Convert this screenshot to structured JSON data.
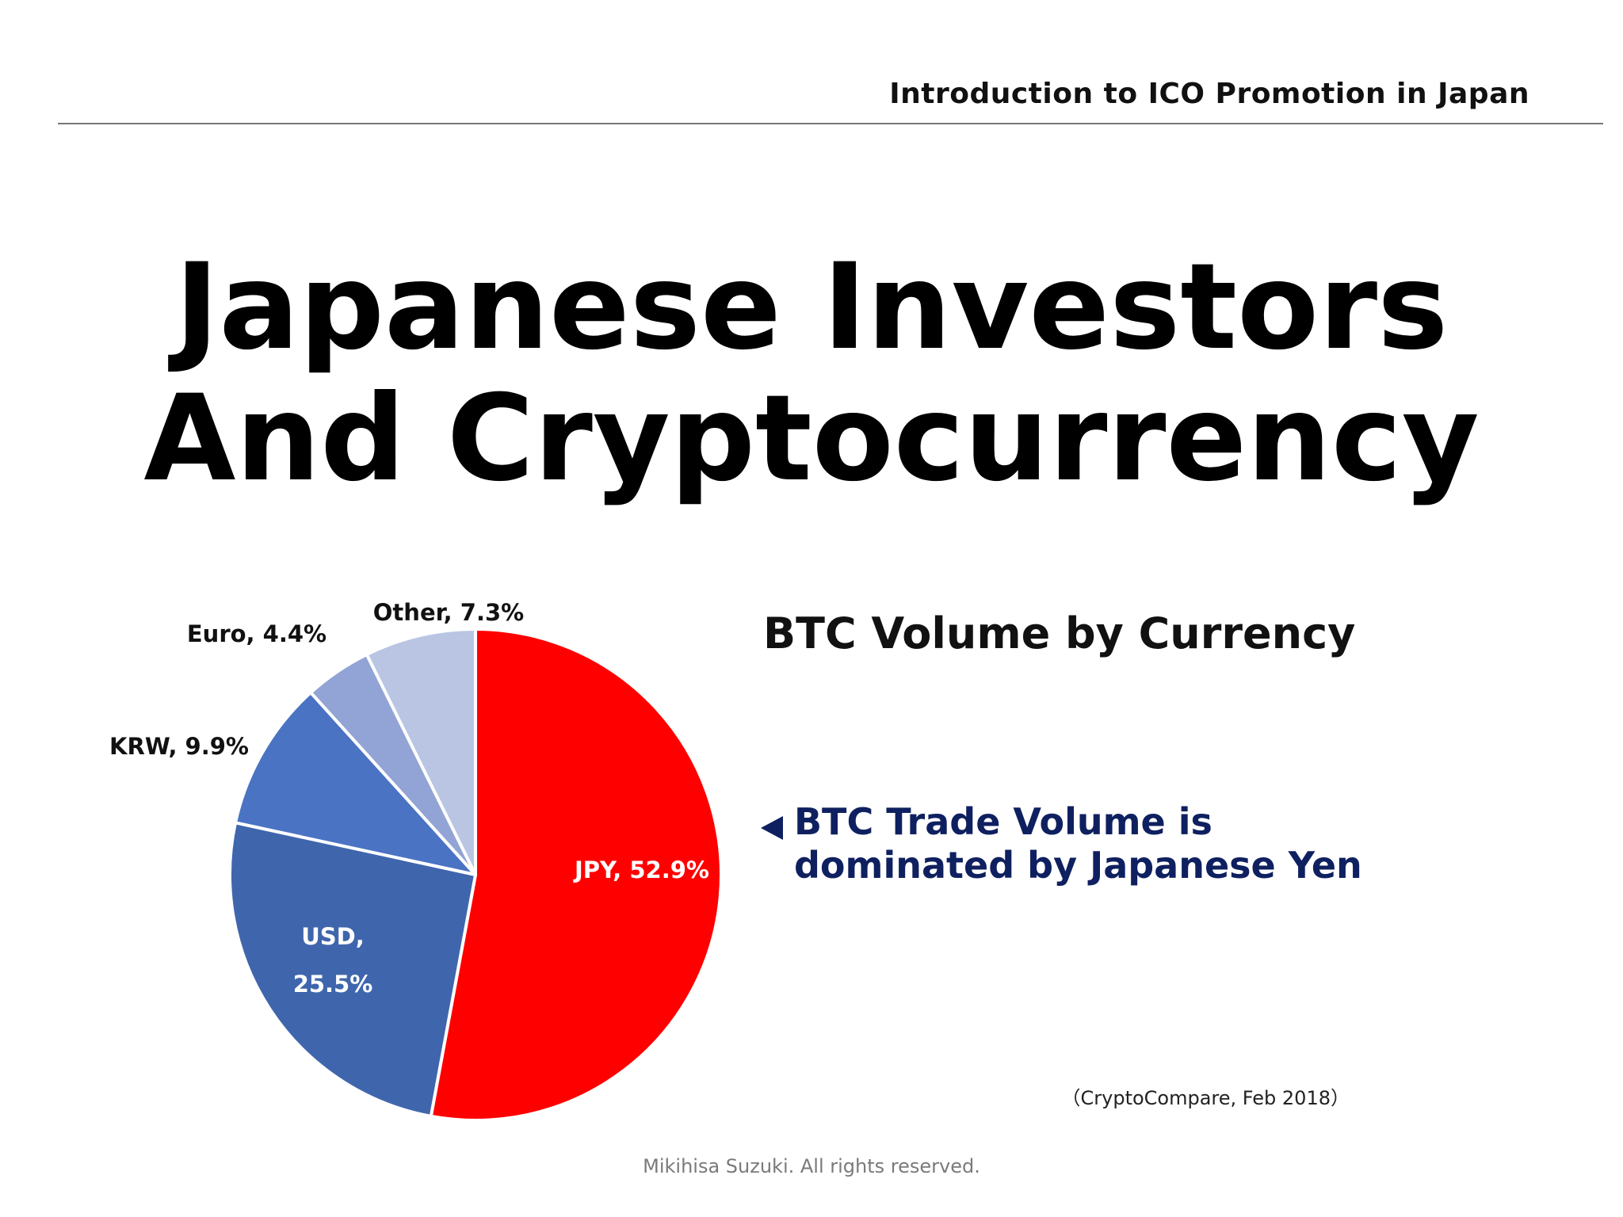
{
  "header": {
    "title": "Introduction to ICO Promotion in Japan"
  },
  "main_title": {
    "line1": "Japanese Investors",
    "line2": "And Cryptocurrency"
  },
  "chart_title": "BTC Volume by Currency",
  "note": {
    "text": "BTC Trade Volume is dominated by Japanese Yen",
    "marker_color": "#0f2060"
  },
  "source": "（CryptoCompare, Feb 2018）",
  "footer": "Mikihisa Suzuki. All rights reserved.",
  "chart_data": {
    "type": "pie",
    "title": "BTC Volume by Currency",
    "start": "12 o'clock",
    "direction": "clockwise",
    "slices": [
      {
        "name": "JPY",
        "value": 52.9,
        "label": "JPY, 52.9%",
        "color": "#ff0000",
        "label_position": "inside",
        "label_color": "#ffffff"
      },
      {
        "name": "USD",
        "value": 25.5,
        "label_lines": [
          "USD,",
          "25.5%"
        ],
        "color": "#3f66ad",
        "label_position": "inside",
        "label_color": "#ffffff"
      },
      {
        "name": "KRW",
        "value": 9.9,
        "label": "KRW, 9.9%",
        "color": "#4a73c4",
        "label_position": "outside",
        "label_color": "#111111"
      },
      {
        "name": "Euro",
        "value": 4.4,
        "label": "Euro, 4.4%",
        "color": "#92a4d5",
        "label_position": "outside",
        "label_color": "#111111"
      },
      {
        "name": "Other",
        "value": 7.3,
        "label": "Other, 7.3%",
        "color": "#b9c5e3",
        "label_position": "outside",
        "label_color": "#111111"
      }
    ]
  }
}
